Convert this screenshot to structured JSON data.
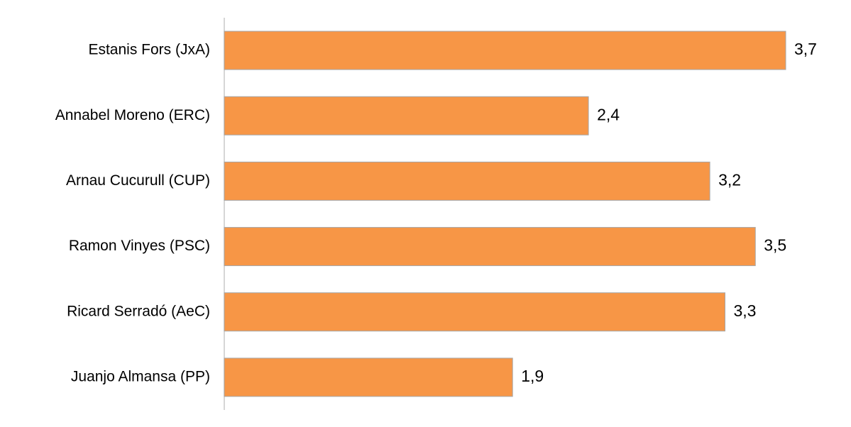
{
  "chart_data": {
    "type": "bar",
    "orientation": "horizontal",
    "categories": [
      "Estanis Fors (JxA)",
      "Annabel Moreno (ERC)",
      "Arnau Cucurull (CUP)",
      "Ramon Vinyes (PSC)",
      "Ricard Serradó (AeC)",
      "Juanjo Almansa (PP)"
    ],
    "values": [
      3.7,
      2.4,
      3.2,
      3.5,
      3.3,
      1.9
    ],
    "value_labels": [
      "3,7",
      "2,4",
      "3,2",
      "3,5",
      "3,3",
      "1,9"
    ],
    "color": "#f79646"
  }
}
